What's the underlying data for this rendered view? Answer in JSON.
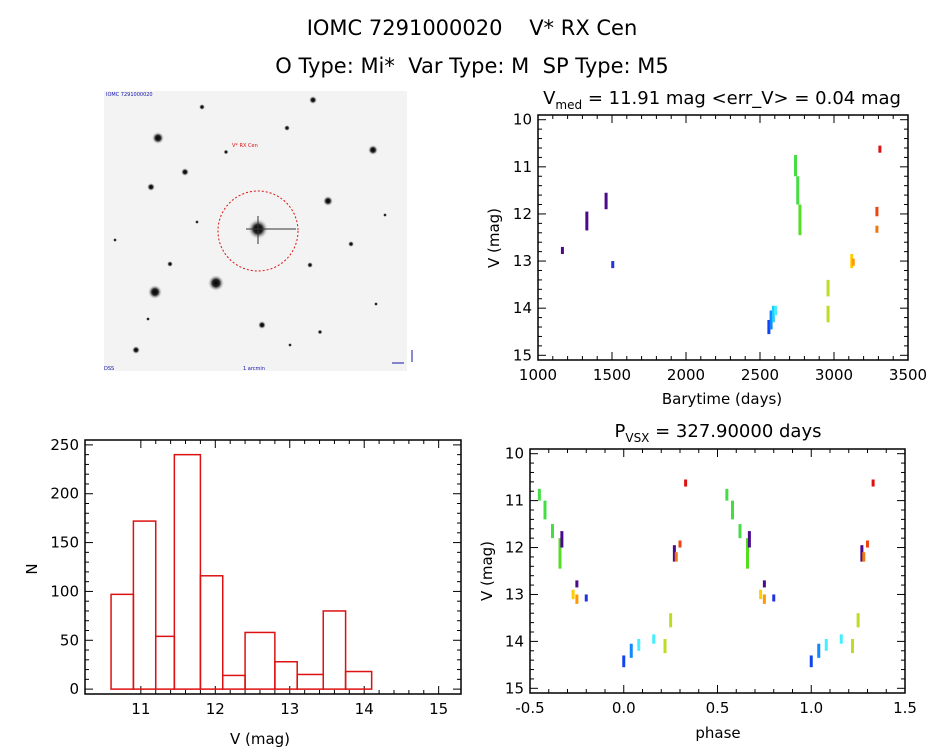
{
  "header": {
    "line1": "IOMC 7291000020    V* RX Cen",
    "line2": "O Type: Mi*  Var Type: M  SP Type: M5"
  },
  "image_panel": {
    "top_left_label": "IOMC 7291000020",
    "target_label": "V* RX Cen",
    "bottom_label": "1 arcmin",
    "bottom_left_label": "DSS"
  },
  "colors": {
    "histogram_bar": "#dd1111",
    "circle": "#dd1111"
  },
  "chart_data": [
    {
      "type": "scatter",
      "name": "light-curve",
      "title": "V_med = 11.91 mag <err_V> = 0.04 mag",
      "title_main": "V",
      "title_sub": "med",
      "title_rest": " = 11.91 mag <err_V> = 0.04 mag",
      "xlabel": "Barytime (days)",
      "ylabel": "V (mag)",
      "xlim": [
        1000,
        3500
      ],
      "ylim": [
        15.1,
        9.9
      ],
      "xticks": [
        1000,
        1500,
        2000,
        2500,
        3000,
        3500
      ],
      "yticks": [
        10,
        11,
        12,
        13,
        14,
        15
      ],
      "segments": [
        {
          "x": 1165,
          "y1": 12.7,
          "y2": 12.85,
          "color": "#4a0a8a"
        },
        {
          "x": 1330,
          "y1": 11.95,
          "y2": 12.35,
          "color": "#4a0a8a"
        },
        {
          "x": 1460,
          "y1": 11.55,
          "y2": 11.9,
          "color": "#4a0a8a"
        },
        {
          "x": 1505,
          "y1": 13.0,
          "y2": 13.15,
          "color": "#2233dd"
        },
        {
          "x": 2560,
          "y1": 14.25,
          "y2": 14.55,
          "color": "#1144ee"
        },
        {
          "x": 2575,
          "y1": 14.05,
          "y2": 14.45,
          "color": "#1188ff"
        },
        {
          "x": 2590,
          "y1": 13.95,
          "y2": 14.3,
          "color": "#22ccff"
        },
        {
          "x": 2605,
          "y1": 13.95,
          "y2": 14.15,
          "color": "#44eeff"
        },
        {
          "x": 2740,
          "y1": 10.75,
          "y2": 11.2,
          "color": "#44dd44"
        },
        {
          "x": 2755,
          "y1": 11.2,
          "y2": 11.8,
          "color": "#44dd44"
        },
        {
          "x": 2770,
          "y1": 11.8,
          "y2": 12.45,
          "color": "#55dd22"
        },
        {
          "x": 2960,
          "y1": 13.4,
          "y2": 13.75,
          "color": "#bbdd22"
        },
        {
          "x": 2960,
          "y1": 13.95,
          "y2": 14.3,
          "color": "#bbdd22"
        },
        {
          "x": 3120,
          "y1": 12.85,
          "y2": 13.15,
          "color": "#ffcc00"
        },
        {
          "x": 3130,
          "y1": 12.95,
          "y2": 13.1,
          "color": "#ff9900"
        },
        {
          "x": 3290,
          "y1": 11.85,
          "y2": 12.05,
          "color": "#ee4411"
        },
        {
          "x": 3290,
          "y1": 12.25,
          "y2": 12.4,
          "color": "#ee7711"
        },
        {
          "x": 3310,
          "y1": 10.55,
          "y2": 10.7,
          "color": "#dd1111"
        }
      ]
    },
    {
      "type": "bar",
      "name": "magnitude-histogram",
      "xlabel": "V (mag)",
      "ylabel": "N",
      "xlim": [
        10.25,
        15.3
      ],
      "ylim": [
        -5,
        255
      ],
      "xticks": [
        11,
        12,
        13,
        14,
        15
      ],
      "yticks": [
        0,
        50,
        100,
        150,
        200,
        250
      ],
      "bin_edges": [
        10.6,
        10.9,
        11.2,
        11.45,
        11.8,
        12.1,
        12.4,
        12.8,
        13.1,
        13.45,
        13.75,
        14.1,
        14.45,
        14.85
      ],
      "values": [
        97,
        172,
        54,
        240,
        116,
        14,
        58,
        28,
        15,
        80,
        18,
        0,
        0
      ]
    },
    {
      "type": "scatter",
      "name": "phased-curve",
      "title": "P_VSX = 327.90000 days",
      "title_main": "P",
      "title_sub": "VSX",
      "title_rest": " = 327.90000 days",
      "xlabel": "phase",
      "ylabel": "V (mag)",
      "xlim": [
        -0.5,
        1.5
      ],
      "ylim": [
        15.1,
        9.9
      ],
      "xticks": [
        -0.5,
        0.0,
        0.5,
        1.0,
        1.5
      ],
      "xtick_labels": [
        "-0.5",
        "0.0",
        "0.5",
        "1.0",
        "1.5"
      ],
      "yticks": [
        10,
        11,
        12,
        13,
        14,
        15
      ],
      "segments": [
        {
          "x": -0.45,
          "y1": 10.75,
          "y2": 11.0,
          "color": "#44dd44"
        },
        {
          "x": -0.42,
          "y1": 11.0,
          "y2": 11.4,
          "color": "#44dd44"
        },
        {
          "x": -0.38,
          "y1": 11.5,
          "y2": 11.8,
          "color": "#44dd44"
        },
        {
          "x": -0.34,
          "y1": 11.8,
          "y2": 12.45,
          "color": "#55dd22"
        },
        {
          "x": -0.33,
          "y1": 11.65,
          "y2": 12.0,
          "color": "#4a0a8a"
        },
        {
          "x": -0.27,
          "y1": 12.9,
          "y2": 13.1,
          "color": "#ffcc00"
        },
        {
          "x": -0.25,
          "y1": 12.7,
          "y2": 12.85,
          "color": "#4a0a8a"
        },
        {
          "x": -0.25,
          "y1": 13.0,
          "y2": 13.2,
          "color": "#ff9900"
        },
        {
          "x": -0.2,
          "y1": 13.0,
          "y2": 13.15,
          "color": "#2233dd"
        },
        {
          "x": 0.0,
          "y1": 14.3,
          "y2": 14.55,
          "color": "#1144ee"
        },
        {
          "x": 0.04,
          "y1": 14.05,
          "y2": 14.35,
          "color": "#1188ff"
        },
        {
          "x": 0.08,
          "y1": 13.95,
          "y2": 14.2,
          "color": "#44eeff"
        },
        {
          "x": 0.16,
          "y1": 13.85,
          "y2": 14.05,
          "color": "#44eeff"
        },
        {
          "x": 0.22,
          "y1": 13.95,
          "y2": 14.25,
          "color": "#bbdd22"
        },
        {
          "x": 0.25,
          "y1": 13.4,
          "y2": 13.7,
          "color": "#bbdd22"
        },
        {
          "x": 0.27,
          "y1": 11.95,
          "y2": 12.3,
          "color": "#4a0a8a"
        },
        {
          "x": 0.28,
          "y1": 12.1,
          "y2": 12.3,
          "color": "#ee7711"
        },
        {
          "x": 0.3,
          "y1": 11.85,
          "y2": 12.0,
          "color": "#ee4411"
        },
        {
          "x": 0.33,
          "y1": 10.55,
          "y2": 10.7,
          "color": "#dd1111"
        },
        {
          "x": 0.55,
          "y1": 10.75,
          "y2": 11.0,
          "color": "#44dd44"
        },
        {
          "x": 0.58,
          "y1": 11.0,
          "y2": 11.4,
          "color": "#44dd44"
        },
        {
          "x": 0.62,
          "y1": 11.5,
          "y2": 11.8,
          "color": "#44dd44"
        },
        {
          "x": 0.66,
          "y1": 11.8,
          "y2": 12.45,
          "color": "#55dd22"
        },
        {
          "x": 0.67,
          "y1": 11.65,
          "y2": 12.0,
          "color": "#4a0a8a"
        },
        {
          "x": 0.73,
          "y1": 12.9,
          "y2": 13.1,
          "color": "#ffcc00"
        },
        {
          "x": 0.75,
          "y1": 12.7,
          "y2": 12.85,
          "color": "#4a0a8a"
        },
        {
          "x": 0.75,
          "y1": 13.0,
          "y2": 13.2,
          "color": "#ff9900"
        },
        {
          "x": 0.8,
          "y1": 13.0,
          "y2": 13.15,
          "color": "#2233dd"
        },
        {
          "x": 1.0,
          "y1": 14.3,
          "y2": 14.55,
          "color": "#1144ee"
        },
        {
          "x": 1.04,
          "y1": 14.05,
          "y2": 14.35,
          "color": "#1188ff"
        },
        {
          "x": 1.08,
          "y1": 13.95,
          "y2": 14.2,
          "color": "#44eeff"
        },
        {
          "x": 1.16,
          "y1": 13.85,
          "y2": 14.05,
          "color": "#44eeff"
        },
        {
          "x": 1.22,
          "y1": 13.95,
          "y2": 14.25,
          "color": "#bbdd22"
        },
        {
          "x": 1.25,
          "y1": 13.4,
          "y2": 13.7,
          "color": "#bbdd22"
        },
        {
          "x": 1.27,
          "y1": 11.95,
          "y2": 12.3,
          "color": "#4a0a8a"
        },
        {
          "x": 1.28,
          "y1": 12.1,
          "y2": 12.3,
          "color": "#ee7711"
        },
        {
          "x": 1.3,
          "y1": 11.85,
          "y2": 12.0,
          "color": "#ee4411"
        },
        {
          "x": 1.33,
          "y1": 10.55,
          "y2": 10.7,
          "color": "#dd1111"
        }
      ]
    }
  ]
}
